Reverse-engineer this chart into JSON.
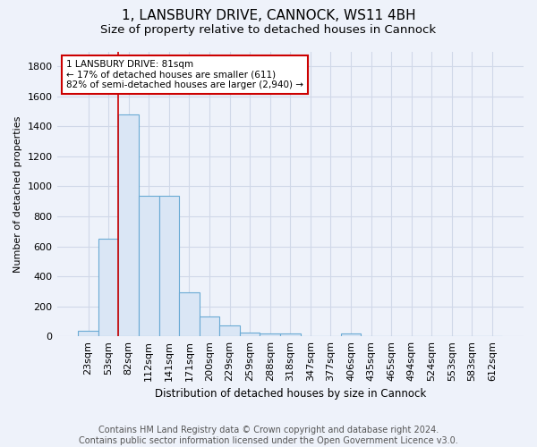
{
  "title1": "1, LANSBURY DRIVE, CANNOCK, WS11 4BH",
  "title2": "Size of property relative to detached houses in Cannock",
  "xlabel": "Distribution of detached houses by size in Cannock",
  "ylabel": "Number of detached properties",
  "bar_values": [
    35,
    650,
    1480,
    940,
    940,
    295,
    130,
    70,
    25,
    20,
    20,
    0,
    0,
    20,
    0,
    0,
    0,
    0,
    0,
    0,
    0
  ],
  "bar_labels": [
    "23sqm",
    "53sqm",
    "82sqm",
    "112sqm",
    "141sqm",
    "171sqm",
    "200sqm",
    "229sqm",
    "259sqm",
    "288sqm",
    "318sqm",
    "347sqm",
    "377sqm",
    "406sqm",
    "435sqm",
    "465sqm",
    "494sqm",
    "524sqm",
    "553sqm",
    "583sqm",
    "612sqm"
  ],
  "bar_color": "#dae6f5",
  "bar_edge_color": "#6aaad4",
  "red_line_index": 2,
  "ylim": [
    0,
    1900
  ],
  "yticks": [
    0,
    200,
    400,
    600,
    800,
    1000,
    1200,
    1400,
    1600,
    1800
  ],
  "annotation_text": "1 LANSBURY DRIVE: 81sqm\n← 17% of detached houses are smaller (611)\n82% of semi-detached houses are larger (2,940) →",
  "annotation_box_color": "#ffffff",
  "annotation_box_edge_color": "#cc0000",
  "footer_text": "Contains HM Land Registry data © Crown copyright and database right 2024.\nContains public sector information licensed under the Open Government Licence v3.0.",
  "background_color": "#eef2fa",
  "plot_background_color": "#eef2fa",
  "grid_color": "#d0d8e8",
  "title1_fontsize": 11,
  "title2_fontsize": 9.5,
  "axis_fontsize": 8,
  "tick_fontsize": 8,
  "footer_fontsize": 7
}
